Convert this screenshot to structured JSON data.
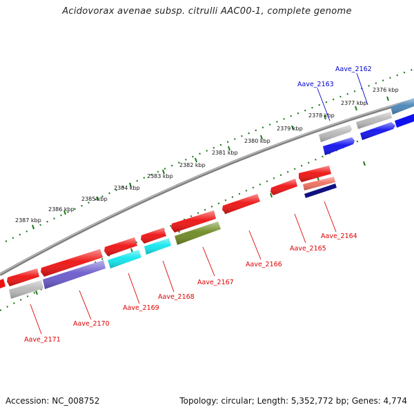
{
  "title": "Acidovorax avenae subsp. citrulli AAC00-1, complete genome",
  "footer": {
    "accession": "Accession: NC_008752",
    "summary": "Topology: circular; Length: 5,352,772 bp; Genes: 4,774"
  },
  "colors": {
    "backbone": "#888888",
    "ticks": "#1f7a1f",
    "forward_label": "#0000cc",
    "reverse_label": "#dd0000",
    "red_gene": "#ee1111",
    "blue_gene": "#1111ee",
    "steel_gene": "#4a86b8",
    "grey_gene": "#b8b8b8",
    "cyan_gene": "#11e6ee",
    "olive_gene": "#6e8a22",
    "slate_gene": "#6a5acd",
    "salmon_gene": "#f07060",
    "navy_gene": "#101080"
  },
  "kbp_labels": [
    "2376 kbp",
    "2377 kbp",
    "2378 kbp",
    "2379 kbp",
    "2380 kbp",
    "2381 kbp",
    "2382 kbp",
    "2383 kbp",
    "2384 kbp",
    "2385 kbp",
    "2386 kbp",
    "2387 kbp"
  ],
  "gene_labels": [
    "Aave_2162",
    "Aave_2163",
    "Aave_2164",
    "Aave_2165",
    "Aave_2166",
    "Aave_2167",
    "Aave_2168",
    "Aave_2169",
    "Aave_2170",
    "Aave_2171"
  ]
}
